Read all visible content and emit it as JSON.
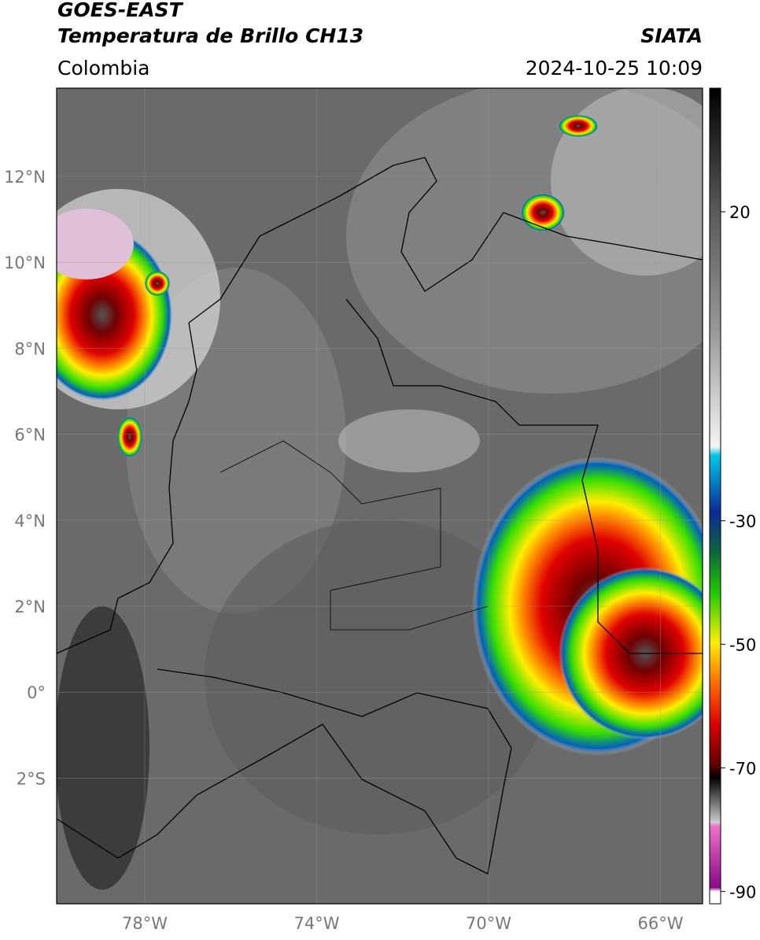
{
  "header": {
    "satellite": "GOES-EAST",
    "product": "Temperatura de Brillo CH13",
    "source": "SIATA",
    "region": "Colombia",
    "datetime": "2024-10-25 10:09"
  },
  "map": {
    "lat_labels": [
      "12°N",
      "10°N",
      "8°N",
      "6°N",
      "4°N",
      "2°N",
      "0°",
      "2°S"
    ],
    "lon_labels": [
      "78°W",
      "74°W",
      "70°W",
      "66°W"
    ]
  },
  "colorbar": {
    "range": [
      -92,
      40
    ],
    "ticks": [
      20,
      -30,
      -50,
      -70,
      -90
    ]
  }
}
